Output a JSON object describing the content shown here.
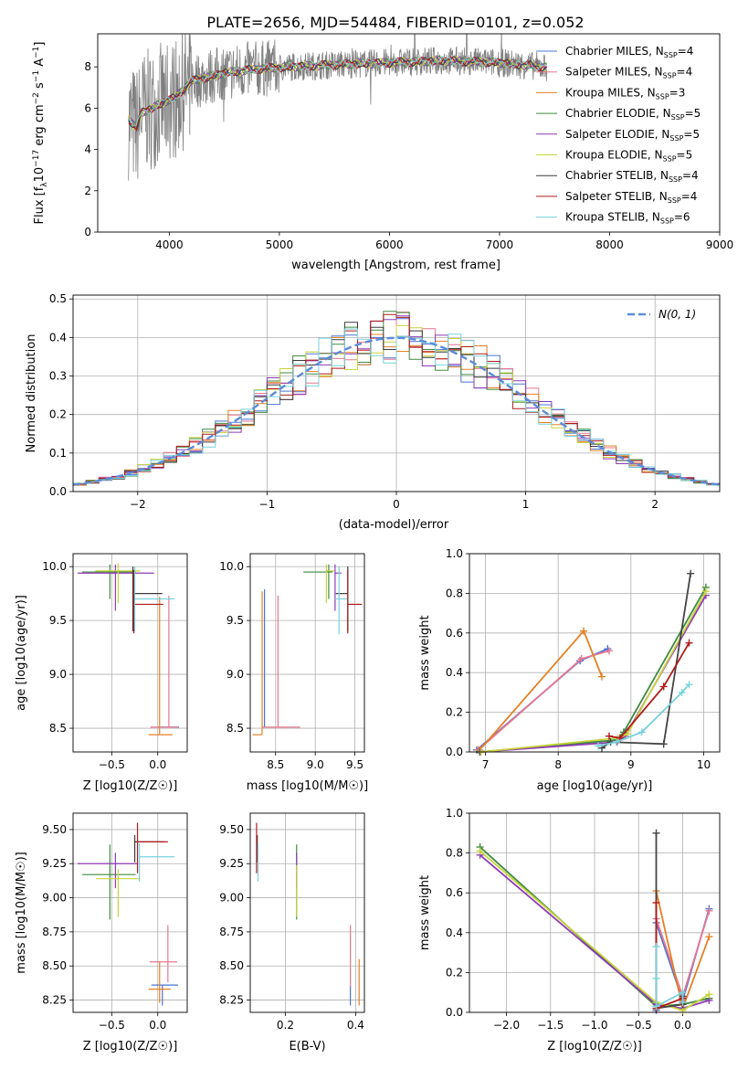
{
  "figure": {
    "title": "PLATE=2656, MJD=54484, FIBERID=0101, z=0.052"
  },
  "colors": {
    "grey": "#808080",
    "grid": "#b0b0b0",
    "dark": "#444444"
  },
  "series": [
    {
      "name": "Chabrier MILES",
      "nssp": "4",
      "color": "#4a74d2"
    },
    {
      "name": "Salpeter MILES",
      "nssp": "4",
      "color": "#e7778f"
    },
    {
      "name": "Kroupa MILES",
      "nssp": "3",
      "color": "#e58025"
    },
    {
      "name": "Chabrier ELODIE",
      "nssp": "5",
      "color": "#3f8a3f"
    },
    {
      "name": "Salpeter ELODIE",
      "nssp": "5",
      "color": "#8e3bb5"
    },
    {
      "name": "Kroupa ELODIE",
      "nssp": "5",
      "color": "#c7d33c"
    },
    {
      "name": "Chabrier STELIB",
      "nssp": "4",
      "color": "#3a3a3a"
    },
    {
      "name": "Salpeter STELIB",
      "nssp": "4",
      "color": "#b11a1a"
    },
    {
      "name": "Kroupa STELIB",
      "nssp": "6",
      "color": "#78d2de"
    }
  ],
  "chart_data": [
    {
      "id": "spectrum",
      "type": "line",
      "xlabel": "wavelength [Angstrom, rest frame]",
      "ylabel": "Flux [f_λ 10^-17 erg cm^-2 s^-1 A^-1]",
      "xlim": [
        3350,
        9000
      ],
      "ylim": [
        0,
        9.6
      ],
      "xticks": [
        4000,
        5000,
        6000,
        7000,
        8000,
        9000
      ],
      "yticks": [
        0,
        2,
        4,
        6,
        8
      ],
      "data_x_range": [
        3630,
        7430
      ],
      "continuum_points": [
        [
          3630,
          5.5
        ],
        [
          3700,
          5.0
        ],
        [
          3750,
          5.8
        ],
        [
          3850,
          6.0
        ],
        [
          3950,
          6.3
        ],
        [
          4050,
          6.5
        ],
        [
          4200,
          7.3
        ],
        [
          4500,
          7.7
        ],
        [
          4800,
          7.9
        ],
        [
          5100,
          8.0
        ],
        [
          5500,
          8.1
        ],
        [
          6000,
          8.2
        ],
        [
          6500,
          8.3
        ],
        [
          7000,
          8.2
        ],
        [
          7400,
          8.0
        ]
      ],
      "legend": "upper right",
      "grid": false
    },
    {
      "id": "histogram",
      "type": "histogram",
      "xlabel": "(data-model)/error",
      "ylabel": "Normed distribution",
      "xlim": [
        -2.5,
        2.5
      ],
      "ylim": [
        0,
        0.51
      ],
      "xticks": [
        -2,
        -1,
        0,
        1,
        2
      ],
      "yticks": [
        0.0,
        0.1,
        0.2,
        0.3,
        0.4,
        0.5
      ],
      "bin_width": 0.1,
      "density_peak": 0.4,
      "reference_label": "N(0, 1)",
      "reference_color": "#5b8bd8",
      "legend": "upper right",
      "grid": true
    },
    {
      "id": "age_vs_Z",
      "type": "errorbar",
      "xlabel": "Z [log10(Z/Z☉)]",
      "ylabel": "age  [log10(age/yr)]",
      "xlim": [
        -0.92,
        0.32
      ],
      "ylim": [
        8.28,
        10.12
      ],
      "xticks": [
        -0.5,
        0.0
      ],
      "yticks": [
        8.5,
        9.0,
        9.5,
        10.0
      ],
      "points": [
        {
          "s": 0,
          "x": 0.05,
          "y": 8.51,
          "xe": [
            0.05,
            0.18
          ],
          "ye": [
            0.0,
            0.0
          ]
        },
        {
          "s": 1,
          "x": 0.12,
          "y": 8.51,
          "xe": [
            0.2,
            0.1
          ],
          "ye": [
            0.0,
            1.22
          ]
        },
        {
          "s": 2,
          "x": 0.02,
          "y": 8.44,
          "xe": [
            0.12,
            0.14
          ],
          "ye": [
            0.0,
            1.28
          ]
        },
        {
          "s": 3,
          "x": -0.52,
          "y": 9.95,
          "xe": [
            0.3,
            0.28
          ],
          "ye": [
            0.25,
            0.07
          ]
        },
        {
          "s": 4,
          "x": -0.46,
          "y": 9.94,
          "xe": [
            0.41,
            0.42
          ],
          "ye": [
            0.35,
            0.08
          ]
        },
        {
          "s": 5,
          "x": -0.43,
          "y": 9.96,
          "xe": [
            0.25,
            0.24
          ],
          "ye": [
            0.3,
            0.07
          ]
        },
        {
          "s": 6,
          "x": -0.27,
          "y": 9.75,
          "xe": [
            0.0,
            0.32
          ],
          "ye": [
            0.35,
            0.25
          ]
        },
        {
          "s": 7,
          "x": -0.26,
          "y": 9.65,
          "xe": [
            0.0,
            0.32
          ],
          "ye": [
            0.27,
            0.32
          ]
        },
        {
          "s": 8,
          "x": -0.25,
          "y": 9.7,
          "xe": [
            0.0,
            0.43
          ],
          "ye": [
            0.3,
            0.3
          ]
        }
      ],
      "grid": true
    },
    {
      "id": "age_vs_mass",
      "type": "errorbar",
      "xlabel": "mass [log10(M/M☉)]",
      "ylabel": "",
      "xlim": [
        8.18,
        9.62
      ],
      "ylim": [
        8.28,
        10.12
      ],
      "xticks": [
        8.5,
        9.0,
        9.5
      ],
      "yticks": [
        8.5,
        9.0,
        9.5,
        10.0
      ],
      "points": [
        {
          "s": 0,
          "x": 8.36,
          "y": 8.51,
          "xe": [
            0.0,
            0.0
          ],
          "ye": [
            0.0,
            1.28
          ]
        },
        {
          "s": 1,
          "x": 8.53,
          "y": 8.51,
          "xe": [
            0.2,
            0.28
          ],
          "ye": [
            0.0,
            1.22
          ]
        },
        {
          "s": 2,
          "x": 8.33,
          "y": 8.44,
          "xe": [
            0.12,
            0.0
          ],
          "ye": [
            0.0,
            1.33
          ]
        },
        {
          "s": 3,
          "x": 9.17,
          "y": 9.95,
          "xe": [
            0.32,
            0.05
          ],
          "ye": [
            0.25,
            0.07
          ]
        },
        {
          "s": 4,
          "x": 9.25,
          "y": 9.94,
          "xe": [
            0.0,
            0.08
          ],
          "ye": [
            0.35,
            0.08
          ]
        },
        {
          "s": 5,
          "x": 9.14,
          "y": 9.96,
          "xe": [
            0.0,
            0.1
          ],
          "ye": [
            0.3,
            0.06
          ]
        },
        {
          "s": 6,
          "x": 9.41,
          "y": 9.75,
          "xe": [
            0.15,
            0.0
          ],
          "ye": [
            0.35,
            0.25
          ]
        },
        {
          "s": 7,
          "x": 9.41,
          "y": 9.65,
          "xe": [
            0.0,
            0.18
          ],
          "ye": [
            0.27,
            0.32
          ]
        },
        {
          "s": 8,
          "x": 9.3,
          "y": 9.7,
          "xe": [
            0.05,
            0.1
          ],
          "ye": [
            0.33,
            0.3
          ]
        }
      ],
      "grid": true
    },
    {
      "id": "massweight_vs_age",
      "type": "line",
      "xlabel": "age  [log10(age/yr)]",
      "ylabel": "mass weight",
      "xlim": [
        6.78,
        10.22
      ],
      "ylim": [
        0,
        1.0
      ],
      "xticks": [
        7,
        8,
        9,
        10
      ],
      "yticks": [
        0.0,
        0.2,
        0.4,
        0.6,
        0.8,
        1.0
      ],
      "lines": [
        {
          "s": 0,
          "pts": [
            [
              6.88,
              0.01
            ],
            [
              8.3,
              0.46
            ],
            [
              8.68,
              0.52
            ]
          ]
        },
        {
          "s": 1,
          "pts": [
            [
              6.9,
              0.01
            ],
            [
              8.32,
              0.47
            ],
            [
              8.7,
              0.51
            ]
          ]
        },
        {
          "s": 2,
          "pts": [
            [
              6.92,
              0.01
            ],
            [
              8.35,
              0.61
            ],
            [
              8.6,
              0.38
            ]
          ]
        },
        {
          "s": 3,
          "pts": [
            [
              6.92,
              0.0
            ],
            [
              8.8,
              0.06
            ],
            [
              8.9,
              0.1
            ],
            [
              10.03,
              0.83
            ]
          ]
        },
        {
          "s": 4,
          "pts": [
            [
              6.93,
              0.0
            ],
            [
              8.81,
              0.05
            ],
            [
              8.92,
              0.08
            ],
            [
              10.03,
              0.79
            ]
          ]
        },
        {
          "s": 5,
          "pts": [
            [
              6.94,
              0.0
            ],
            [
              8.82,
              0.07
            ],
            [
              8.95,
              0.09
            ],
            [
              10.03,
              0.81
            ]
          ]
        },
        {
          "s": 6,
          "pts": [
            [
              8.6,
              0.02
            ],
            [
              8.72,
              0.05
            ],
            [
              9.45,
              0.04
            ],
            [
              9.82,
              0.9
            ]
          ]
        },
        {
          "s": 7,
          "pts": [
            [
              8.7,
              0.08
            ],
            [
              8.85,
              0.07
            ],
            [
              9.45,
              0.33
            ],
            [
              9.8,
              0.55
            ]
          ]
        },
        {
          "s": 8,
          "pts": [
            [
              8.55,
              0.03
            ],
            [
              8.8,
              0.05
            ],
            [
              9.15,
              0.1
            ],
            [
              9.7,
              0.3
            ],
            [
              9.8,
              0.34
            ]
          ]
        }
      ],
      "grid": true
    },
    {
      "id": "mass_vs_Z",
      "type": "errorbar",
      "xlabel": "Z [log10(Z/Z☉)]",
      "ylabel": "mass [log10(M/M☉)]",
      "xlim": [
        -0.92,
        0.32
      ],
      "ylim": [
        8.16,
        9.62
      ],
      "xticks": [
        -0.5,
        0.0
      ],
      "yticks": [
        8.25,
        8.5,
        8.75,
        9.0,
        9.25,
        9.5
      ],
      "points": [
        {
          "s": 0,
          "x": 0.05,
          "y": 8.36,
          "xe": [
            0.12,
            0.17
          ],
          "ye": [
            0.15,
            0.0
          ]
        },
        {
          "s": 1,
          "x": 0.11,
          "y": 8.53,
          "xe": [
            0.2,
            0.1
          ],
          "ye": [
            0.15,
            0.27
          ]
        },
        {
          "s": 2,
          "x": 0.02,
          "y": 8.33,
          "xe": [
            0.12,
            0.12
          ],
          "ye": [
            0.1,
            0.2
          ]
        },
        {
          "s": 3,
          "x": -0.52,
          "y": 9.17,
          "xe": [
            0.3,
            0.28
          ],
          "ye": [
            0.33,
            0.22
          ]
        },
        {
          "s": 4,
          "x": -0.46,
          "y": 9.25,
          "xe": [
            0.41,
            0.24
          ],
          "ye": [
            0.18,
            0.08
          ]
        },
        {
          "s": 5,
          "x": -0.43,
          "y": 9.14,
          "xe": [
            0.24,
            0.24
          ],
          "ye": [
            0.28,
            0.07
          ]
        },
        {
          "s": 6,
          "x": -0.25,
          "y": 9.41,
          "xe": [
            0.0,
            0.32
          ],
          "ye": [
            0.15,
            0.05
          ]
        },
        {
          "s": 7,
          "x": -0.22,
          "y": 9.41,
          "xe": [
            0.0,
            0.33
          ],
          "ye": [
            0.23,
            0.14
          ]
        },
        {
          "s": 8,
          "x": -0.2,
          "y": 9.3,
          "xe": [
            0.0,
            0.38
          ],
          "ye": [
            0.18,
            0.1
          ]
        }
      ],
      "grid": true
    },
    {
      "id": "mass_vs_ebv",
      "type": "errorbar",
      "xlabel": "E(B-V)",
      "ylabel": "",
      "xlim": [
        0.1,
        0.425
      ],
      "ylim": [
        8.16,
        9.62
      ],
      "xticks": [
        0.2,
        0.4
      ],
      "yticks": [
        8.25,
        8.5,
        8.75,
        9.0,
        9.25,
        9.5
      ],
      "points": [
        {
          "s": 0,
          "x": 0.385,
          "y": 8.36,
          "xe": [
            0.0,
            0.0
          ],
          "ye": [
            0.15,
            0.0
          ]
        },
        {
          "s": 1,
          "x": 0.385,
          "y": 8.53,
          "xe": [
            0.0,
            0.0
          ],
          "ye": [
            0.18,
            0.27
          ]
        },
        {
          "s": 2,
          "x": 0.41,
          "y": 8.33,
          "xe": [
            0.0,
            0.0
          ],
          "ye": [
            0.12,
            0.22
          ]
        },
        {
          "s": 3,
          "x": 0.232,
          "y": 9.17,
          "xe": [
            0.0,
            0.0
          ],
          "ye": [
            0.33,
            0.22
          ]
        },
        {
          "s": 4,
          "x": 0.232,
          "y": 9.25,
          "xe": [
            0.0,
            0.0
          ],
          "ye": [
            0.18,
            0.08
          ]
        },
        {
          "s": 5,
          "x": 0.232,
          "y": 9.14,
          "xe": [
            0.0,
            0.0
          ],
          "ye": [
            0.28,
            0.1
          ]
        },
        {
          "s": 6,
          "x": 0.12,
          "y": 9.41,
          "xe": [
            0.0,
            0.0
          ],
          "ye": [
            0.15,
            0.05
          ]
        },
        {
          "s": 7,
          "x": 0.118,
          "y": 9.41,
          "xe": [
            0.0,
            0.0
          ],
          "ye": [
            0.23,
            0.14
          ]
        },
        {
          "s": 8,
          "x": 0.122,
          "y": 9.3,
          "xe": [
            0.0,
            0.0
          ],
          "ye": [
            0.18,
            0.1
          ]
        }
      ],
      "grid": true
    },
    {
      "id": "massweight_vs_Z",
      "type": "line",
      "xlabel": "Z [log10(Z/Z☉)]",
      "ylabel": "mass weight",
      "xlim": [
        -2.42,
        0.42
      ],
      "ylim": [
        0,
        1.0
      ],
      "xticks": [
        -2.0,
        -1.5,
        -1.0,
        -0.5,
        0.0
      ],
      "yticks": [
        0.0,
        0.2,
        0.4,
        0.6,
        0.8,
        1.0
      ],
      "lines": [
        {
          "s": 0,
          "pts": [
            [
              0.3,
              0.52
            ],
            [
              0.0,
              0.06
            ],
            [
              -0.3,
              0.45
            ],
            [
              -0.3,
              0.01
            ]
          ]
        },
        {
          "s": 1,
          "pts": [
            [
              0.3,
              0.51
            ],
            [
              0.0,
              0.08
            ],
            [
              -0.3,
              0.47
            ],
            [
              -0.3,
              0.02
            ]
          ]
        },
        {
          "s": 2,
          "pts": [
            [
              0.3,
              0.38
            ],
            [
              0.0,
              0.02
            ],
            [
              -0.3,
              0.61
            ],
            [
              -0.3,
              0.03
            ]
          ]
        },
        {
          "s": 3,
          "pts": [
            [
              -2.3,
              0.83
            ],
            [
              -0.3,
              0.03
            ],
            [
              0.0,
              0.04
            ],
            [
              0.3,
              0.07
            ]
          ]
        },
        {
          "s": 4,
          "pts": [
            [
              -2.3,
              0.79
            ],
            [
              -0.3,
              0.04
            ],
            [
              0.0,
              0.02
            ],
            [
              0.3,
              0.06
            ]
          ]
        },
        {
          "s": 5,
          "pts": [
            [
              -2.3,
              0.81
            ],
            [
              -0.3,
              0.05
            ],
            [
              0.0,
              0.01
            ],
            [
              0.3,
              0.09
            ]
          ]
        },
        {
          "s": 6,
          "pts": [
            [
              -0.3,
              0.9
            ],
            [
              -0.3,
              0.02
            ],
            [
              0.0,
              0.04
            ],
            [
              0.0,
              0.08
            ]
          ]
        },
        {
          "s": 7,
          "pts": [
            [
              -0.3,
              0.55
            ],
            [
              -0.3,
              0.02
            ],
            [
              0.0,
              0.07
            ],
            [
              0.0,
              0.05
            ]
          ]
        },
        {
          "s": 8,
          "pts": [
            [
              -0.3,
              0.33
            ],
            [
              -0.3,
              0.17
            ],
            [
              -0.3,
              0.03
            ],
            [
              0.0,
              0.1
            ],
            [
              0.0,
              0.05
            ]
          ]
        }
      ],
      "grid": true
    }
  ]
}
